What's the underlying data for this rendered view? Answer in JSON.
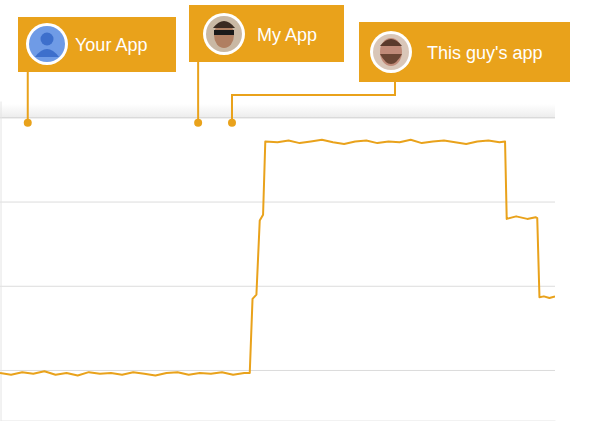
{
  "chart_data": {
    "type": "line",
    "x": [
      0,
      2,
      4,
      6,
      8,
      10,
      12,
      14,
      16,
      18,
      20,
      22,
      24,
      26,
      28,
      30,
      32,
      34,
      36,
      38,
      40,
      42,
      44,
      45,
      45.5,
      46.2,
      46.8,
      47.4,
      47.8,
      50,
      52,
      54,
      56,
      58,
      60,
      62,
      64,
      66,
      68,
      70,
      72,
      74,
      76,
      78,
      80,
      82,
      84,
      86,
      88,
      90,
      91,
      91.3,
      93,
      95,
      96.5,
      96.8,
      97.2,
      98,
      99,
      100
    ],
    "values": [
      -0.03,
      -0.05,
      -0.02,
      -0.04,
      -0.01,
      -0.05,
      -0.03,
      -0.06,
      -0.02,
      -0.04,
      -0.03,
      -0.05,
      -0.02,
      -0.04,
      -0.06,
      -0.03,
      -0.02,
      -0.05,
      -0.03,
      -0.04,
      -0.02,
      -0.05,
      -0.03,
      -0.03,
      0.85,
      0.9,
      1.78,
      1.85,
      2.72,
      2.71,
      2.73,
      2.7,
      2.72,
      2.74,
      2.71,
      2.69,
      2.72,
      2.73,
      2.7,
      2.72,
      2.71,
      2.74,
      2.7,
      2.72,
      2.73,
      2.71,
      2.69,
      2.72,
      2.73,
      2.71,
      2.72,
      1.8,
      1.83,
      1.8,
      1.82,
      1.81,
      0.87,
      0.88,
      0.86,
      0.88
    ],
    "color": "#e9a21b",
    "xlim": [
      0,
      100
    ],
    "ylim": [
      -0.6,
      3.2
    ],
    "yticks": [
      0,
      1,
      2,
      3
    ],
    "grid": true,
    "tick_labels": false,
    "annotations": [
      {
        "text": "Your App",
        "x": 5
      },
      {
        "text": "My App",
        "x": 35.7
      },
      {
        "text": "This guy's app",
        "x": 41.8
      }
    ]
  }
}
